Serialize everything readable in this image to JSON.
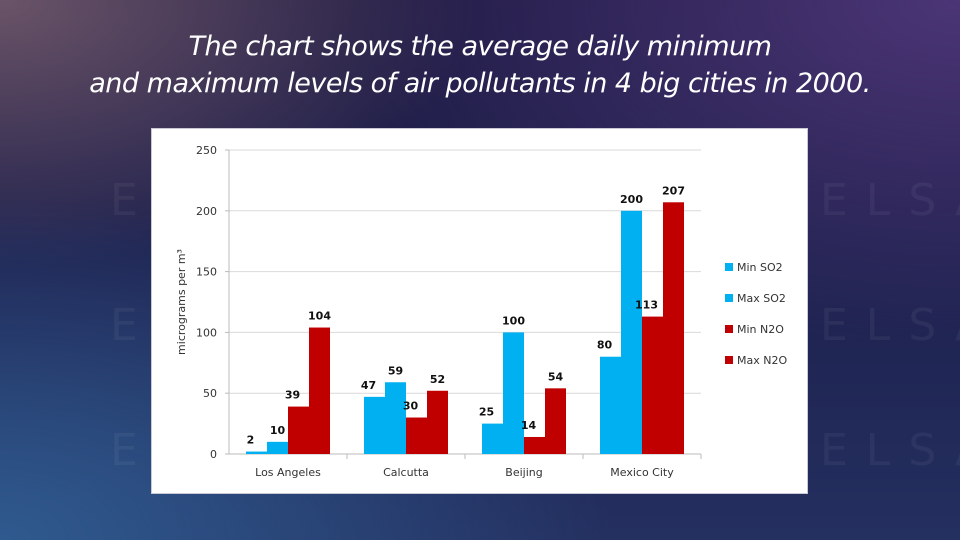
{
  "title_line1": "The chart shows the average daily minimum",
  "title_line2": "and maximum levels of air pollutants in 4 big cities in 2000.",
  "watermark": "ELSA",
  "chart_data": {
    "type": "bar",
    "title": "",
    "xlabel": "",
    "ylabel": "micrograms per m³",
    "ylim": [
      0,
      250
    ],
    "yticks": [
      0,
      50,
      100,
      150,
      200,
      250
    ],
    "grid": true,
    "legend_position": "right",
    "categories": [
      "Los Angeles",
      "Calcutta",
      "Beijing",
      "Mexico City"
    ],
    "series": [
      {
        "name": "Min SO2",
        "color": "#00b0f0",
        "values": [
          2,
          47,
          25,
          80
        ]
      },
      {
        "name": "Max SO2",
        "color": "#00b0f0",
        "values": [
          10,
          59,
          100,
          200
        ]
      },
      {
        "name": "Min N2O",
        "color": "#c00000",
        "values": [
          39,
          30,
          14,
          113
        ]
      },
      {
        "name": "Max N2O",
        "color": "#c00000",
        "values": [
          104,
          52,
          54,
          207
        ]
      }
    ]
  }
}
